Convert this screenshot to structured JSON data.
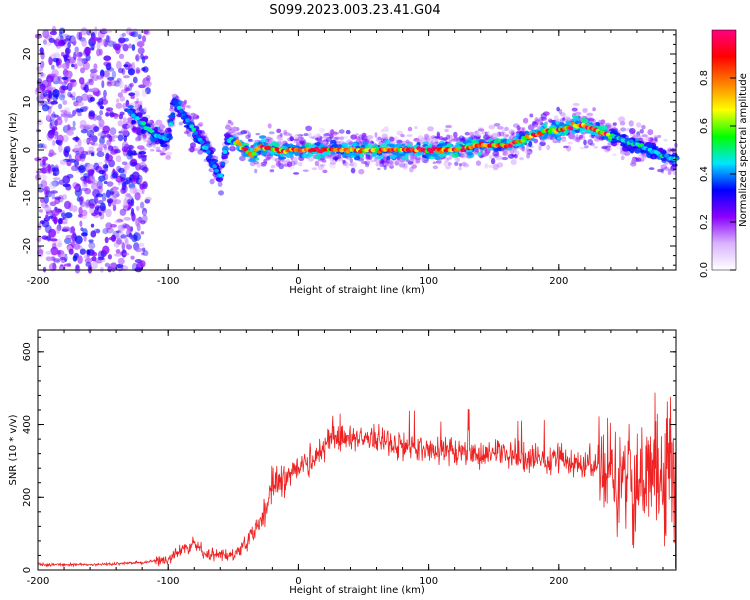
{
  "title": "S099.2023.003.23.41.G04",
  "chart_data": [
    {
      "type": "heatmap",
      "xlabel": "Height of straight line (km)",
      "ylabel": "Frequency (Hz)",
      "xlim": [
        -200,
        290
      ],
      "ylim": [
        -25,
        25
      ],
      "xticks": [
        -200,
        -100,
        0,
        100,
        200
      ],
      "yticks": [
        -20,
        -10,
        0,
        10,
        20
      ],
      "xtick_labels": [
        "-200",
        "-100",
        "0",
        "100",
        "200"
      ],
      "ytick_labels": [
        "-20",
        "-10",
        "0",
        "10",
        "20"
      ],
      "colorbar": {
        "label": "Normalized spectral amplitude",
        "range": [
          0,
          1
        ],
        "ticks": [
          0,
          0.2,
          0.4,
          0.6,
          0.8
        ],
        "tick_labels": [
          "0.0",
          "0.2",
          "0.4",
          "0.6",
          "0.8"
        ],
        "colormap": [
          "#ffffff",
          "#d9b3ff",
          "#8a00ff",
          "#0000ff",
          "#00e5ff",
          "#00ff00",
          "#ffff00",
          "#ff8000",
          "#ff0000",
          "#ff0080"
        ]
      },
      "ridge": {
        "x": [
          -130,
          -110,
          -100,
          -95,
          -90,
          -80,
          -70,
          -65,
          -60,
          -55,
          -50,
          -40,
          -35,
          -30,
          -20,
          -10,
          0,
          20,
          40,
          60,
          80,
          100,
          120,
          140,
          160,
          180,
          190,
          200,
          210,
          220,
          230,
          240,
          250,
          260,
          270,
          280,
          290
        ],
        "y": [
          8,
          3,
          2,
          10,
          8,
          4,
          0,
          -3,
          -6,
          2,
          2,
          0,
          -1,
          1,
          0,
          0,
          0,
          0,
          0,
          0,
          0,
          0,
          0,
          1,
          1,
          3,
          4,
          4,
          5,
          5,
          4,
          3,
          2,
          1,
          0,
          -1,
          -2
        ]
      },
      "grid": false
    },
    {
      "type": "line",
      "xlabel": "Height of straight line (km)",
      "ylabel": "SNR (10 * v/v)",
      "xlim": [
        -200,
        290
      ],
      "ylim": [
        0,
        660
      ],
      "xticks": [
        -200,
        -100,
        0,
        100,
        200
      ],
      "yticks": [
        0,
        200,
        400,
        600
      ],
      "xtick_labels": [
        "-200",
        "-100",
        "0",
        "100",
        "200"
      ],
      "ytick_labels": [
        "0",
        "200",
        "400",
        "600"
      ],
      "color": "#ee2222",
      "series": [
        {
          "x": [
            -200,
            -150,
            -120,
            -100,
            -90,
            -80,
            -70,
            -60,
            -50,
            -40,
            -30,
            -20,
            -15,
            -10,
            0,
            10,
            20,
            25,
            30,
            50,
            80,
            100,
            150,
            200,
            230,
            260,
            275,
            290
          ],
          "y": [
            15,
            15,
            20,
            30,
            55,
            70,
            45,
            40,
            40,
            75,
            120,
            220,
            250,
            260,
            280,
            310,
            340,
            380,
            370,
            360,
            340,
            330,
            320,
            300,
            280,
            240,
            260,
            250
          ]
        }
      ],
      "grid": false
    }
  ]
}
